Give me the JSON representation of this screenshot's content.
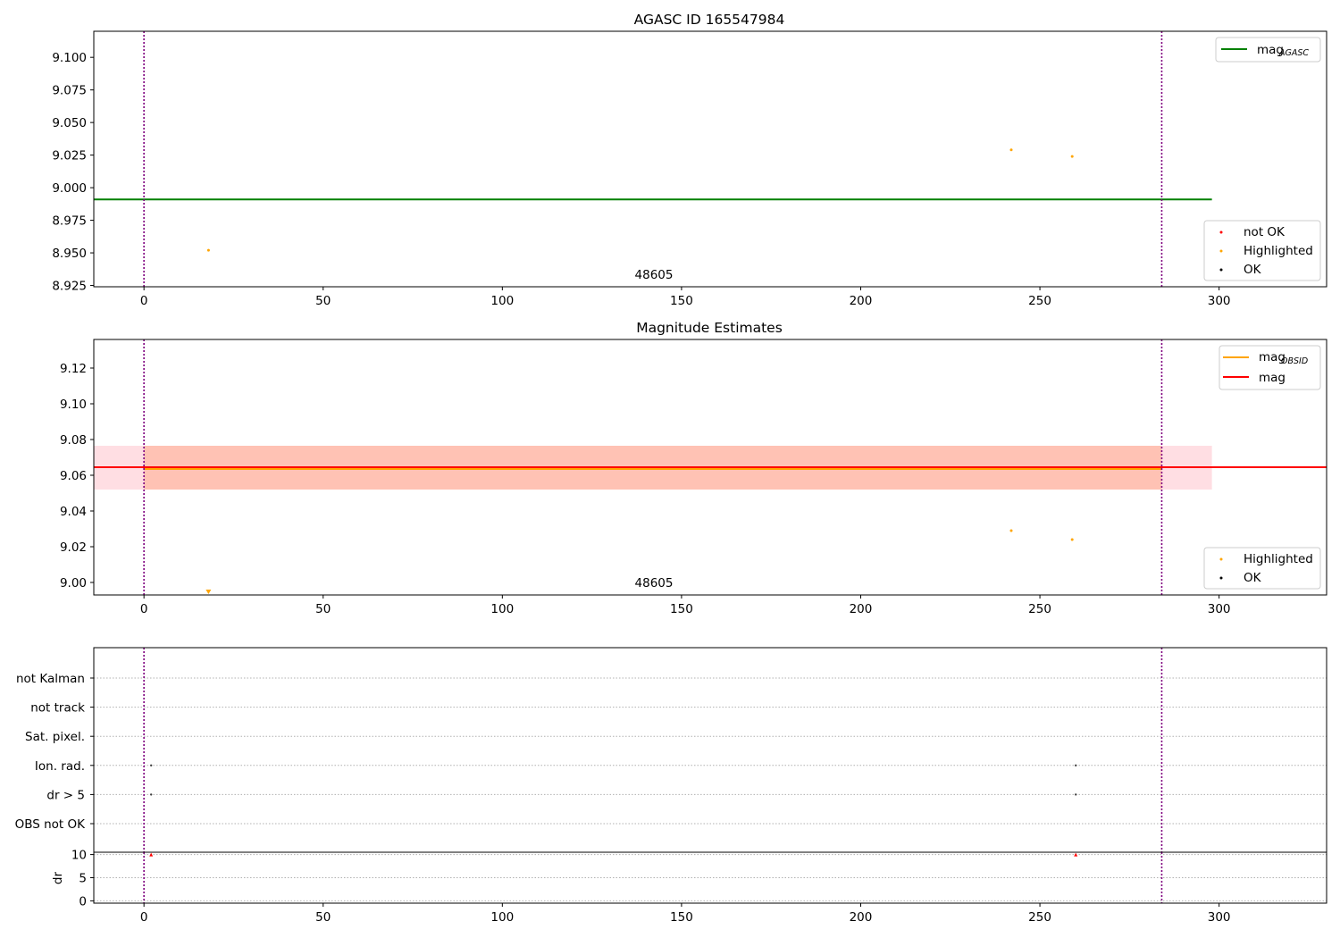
{
  "chart_data": [
    {
      "type": "scatter",
      "title": "AGASC ID 165547984",
      "xlim": [
        -14,
        330
      ],
      "ylim": [
        8.924,
        9.12
      ],
      "x_ticks": [
        0,
        50,
        100,
        150,
        200,
        250,
        300
      ],
      "y_ticks": [
        8.925,
        8.95,
        8.975,
        9.0,
        9.025,
        9.05,
        9.075,
        9.1
      ],
      "y_tick_labels": [
        "8.925",
        "8.950",
        "8.975",
        "9.000",
        "9.025",
        "9.050",
        "9.075",
        "9.100"
      ],
      "obsid_label": "48605",
      "obsid_boundaries": [
        0,
        284
      ],
      "mag_agasc": 8.991,
      "mag_agasc_x_range": [
        -14,
        298
      ],
      "highlighted_points": [
        {
          "x": 18,
          "y": 8.952
        },
        {
          "x": 242,
          "y": 9.029
        },
        {
          "x": 259,
          "y": 9.024
        }
      ],
      "legend_lines": [
        {
          "label": "mag",
          "sub": "AGASC",
          "color": "#008000"
        }
      ],
      "legend_points": [
        {
          "label": "not OK",
          "color": "#ff0000"
        },
        {
          "label": "Highlighted",
          "color": "#ffa500"
        },
        {
          "label": "OK",
          "color": "#000000"
        }
      ],
      "grid": false,
      "legend_location": "upper right, lower right"
    },
    {
      "type": "scatter",
      "title": "Magnitude Estimates",
      "xlim": [
        -14,
        330
      ],
      "ylim": [
        8.993,
        9.136
      ],
      "x_ticks": [
        0,
        50,
        100,
        150,
        200,
        250,
        300
      ],
      "y_ticks": [
        9.0,
        9.02,
        9.04,
        9.06,
        9.08,
        9.1,
        9.12
      ],
      "y_tick_labels": [
        "9.00",
        "9.02",
        "9.04",
        "9.06",
        "9.08",
        "9.10",
        "9.12"
      ],
      "obsid_label": "48605",
      "obsid_boundaries": [
        0,
        284
      ],
      "mag": 9.0645,
      "mag_band": [
        9.052,
        9.0765
      ],
      "mag_band_x_range": [
        -14,
        298
      ],
      "mag_obsid": 9.0635,
      "mag_obsid_band": [
        9.052,
        9.0765
      ],
      "mag_obsid_x_range": [
        0,
        284
      ],
      "highlighted_points": [
        {
          "x": 242,
          "y": 9.029
        },
        {
          "x": 259,
          "y": 9.024
        }
      ],
      "out_of_range_markers": [
        {
          "x": 18,
          "note": "below axis"
        }
      ],
      "legend_lines": [
        {
          "label": "mag",
          "sub": "OBSID",
          "color": "#ffa500"
        },
        {
          "label": "mag",
          "sub": "",
          "color": "#ff0000"
        }
      ],
      "legend_points": [
        {
          "label": "Highlighted",
          "color": "#ffa500"
        },
        {
          "label": "OK",
          "color": "#000000"
        }
      ],
      "grid": false,
      "legend_location": "upper right, lower right"
    },
    {
      "type": "scatter",
      "title": "",
      "xlim": [
        -14,
        330
      ],
      "categories": [
        "not Kalman",
        "not track",
        "Sat. pixel.",
        "Ion. rad.",
        "dr > 5",
        "OBS not OK"
      ],
      "flag_points": [
        {
          "x": 2,
          "category": "Ion. rad."
        },
        {
          "x": 2,
          "category": "dr > 5"
        },
        {
          "x": 260,
          "category": "Ion. rad."
        },
        {
          "x": 260,
          "category": "dr > 5"
        }
      ],
      "obsid_boundaries": [
        0,
        284
      ],
      "grid": "horizontal dotted"
    },
    {
      "type": "scatter",
      "title": "",
      "ylabel": "dr",
      "xlim": [
        -14,
        330
      ],
      "ylim": [
        -0.5,
        10.5
      ],
      "x_ticks": [
        0,
        50,
        100,
        150,
        200,
        250,
        300
      ],
      "y_ticks": [
        0,
        5,
        10
      ],
      "dr_flagged_points": [
        {
          "x": 2,
          "y": 10
        },
        {
          "x": 260,
          "y": 10
        }
      ],
      "obsid_boundaries": [
        0,
        284
      ],
      "grid": "horizontal dotted"
    }
  ],
  "colors": {
    "ok": "#000000",
    "highlighted": "#ffa500",
    "not_ok": "#ff0000",
    "agasc_line": "#008000",
    "mag_line": "#ff0000",
    "obsid_line": "#ffa500",
    "obsid_boundary": "#800080",
    "mag_band": "#ffb6c1",
    "obsid_band": "#ffa07a"
  }
}
